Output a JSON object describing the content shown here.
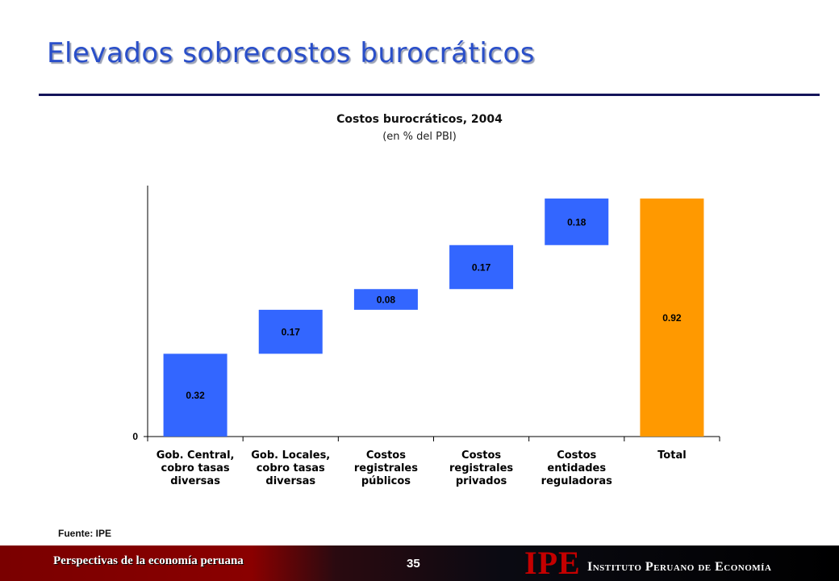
{
  "slide": {
    "title": "Elevados sobrecostos burocráticos",
    "source": "Fuente: IPE",
    "footer_text": "Perspectivas de la economía peruana",
    "page_number": "35",
    "logo_text": "IPE",
    "institute_name": "Instituto Peruano de Economía"
  },
  "chart_data": {
    "type": "bar",
    "subtype": "waterfall",
    "title": "Costos burocráticos, 2004",
    "subtitle": "(en % del PBI)",
    "categories": [
      "Gob. Central, cobro tasas diversas",
      "Gob. Locales, cobro tasas diversas",
      "Costos registrales públicos",
      "Costos registrales privados",
      "Costos entidades reguladoras",
      "Total"
    ],
    "category_lines": [
      [
        "Gob. Central,",
        "cobro tasas",
        "diversas"
      ],
      [
        "Gob. Locales,",
        "cobro tasas",
        "diversas"
      ],
      [
        "Costos",
        "registrales",
        "públicos"
      ],
      [
        "Costos",
        "registrales",
        "privados"
      ],
      [
        "Costos",
        "entidades",
        "reguladoras"
      ],
      [
        "Total"
      ]
    ],
    "values": [
      0.32,
      0.17,
      0.08,
      0.17,
      0.18,
      0.92
    ],
    "value_labels": [
      "0.32",
      "0.17",
      "0.08",
      "0.17",
      "0.18",
      "0.92"
    ],
    "is_total": [
      false,
      false,
      false,
      false,
      false,
      true
    ],
    "y_tick_labels": [
      "0"
    ],
    "ylim": [
      0,
      0.97
    ],
    "grid": false,
    "legend": false,
    "colors": {
      "increment": "#3366ff",
      "total": "#ff9900"
    }
  }
}
